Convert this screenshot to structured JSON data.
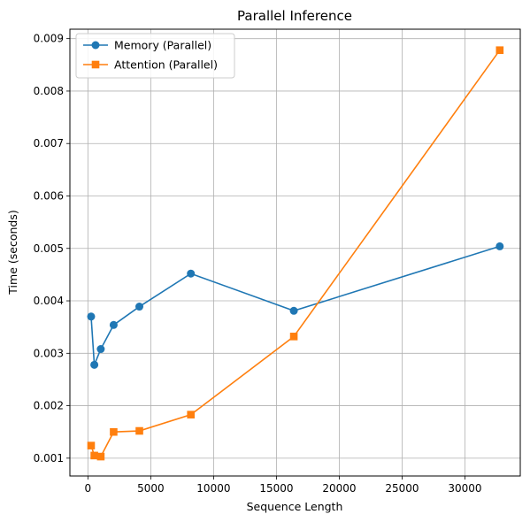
{
  "chart_data": {
    "type": "line",
    "title": "Parallel Inference",
    "xlabel": "Sequence Length",
    "ylabel": "Time (seconds)",
    "xlim": [
      -1432,
      34400
    ],
    "ylim": [
      0.00066,
      0.00918
    ],
    "xticks": [
      0,
      5000,
      10000,
      15000,
      20000,
      25000,
      30000
    ],
    "xtick_labels": [
      "0",
      "5000",
      "10000",
      "15000",
      "20000",
      "25000",
      "30000"
    ],
    "yticks": [
      0.001,
      0.002,
      0.003,
      0.004,
      0.005,
      0.006,
      0.007,
      0.008,
      0.009
    ],
    "ytick_labels": [
      "0.001",
      "0.002",
      "0.003",
      "0.004",
      "0.005",
      "0.006",
      "0.007",
      "0.008",
      "0.009"
    ],
    "grid": true,
    "legend_position": "top-left",
    "series": [
      {
        "name": "Memory (Parallel)",
        "color": "#1f77b4",
        "marker": "circle",
        "x": [
          256,
          512,
          1024,
          2048,
          4096,
          8192,
          16384,
          32768
        ],
        "y": [
          0.0037,
          0.00278,
          0.00308,
          0.00354,
          0.00389,
          0.00452,
          0.00381,
          0.00504
        ]
      },
      {
        "name": "Attention (Parallel)",
        "color": "#ff7f0e",
        "marker": "square",
        "x": [
          256,
          512,
          1024,
          2048,
          4096,
          8192,
          16384,
          32768
        ],
        "y": [
          0.00124,
          0.00105,
          0.00103,
          0.0015,
          0.00152,
          0.00183,
          0.00332,
          0.00878
        ]
      }
    ]
  }
}
